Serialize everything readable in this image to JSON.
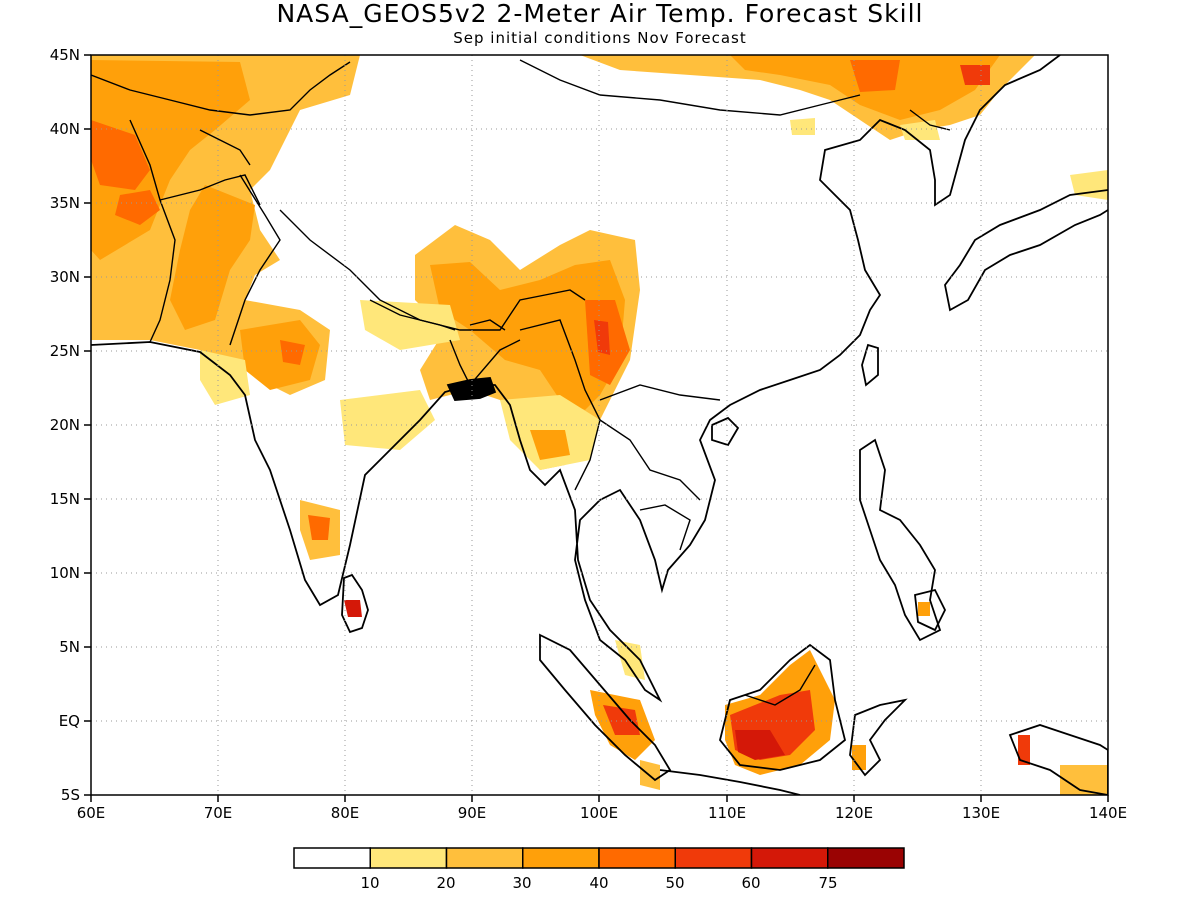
{
  "title": "NASA_GEOS5v2 2-Meter Air Temp. Forecast Skill",
  "subtitle": "Sep initial conditions  Nov Forecast",
  "map": {
    "lon_range": [
      60,
      140
    ],
    "lat_range": [
      -5,
      45
    ],
    "lat_labels": [
      "45N",
      "40N",
      "35N",
      "30N",
      "25N",
      "20N",
      "15N",
      "10N",
      "5N",
      "EQ",
      "5S"
    ],
    "lon_labels": [
      "60E",
      "70E",
      "80E",
      "90E",
      "100E",
      "110E",
      "120E",
      "130E",
      "140E"
    ],
    "grid": "dotted"
  },
  "colorbar": {
    "labels": [
      "10",
      "20",
      "30",
      "40",
      "50",
      "60",
      "75"
    ],
    "colors": [
      "#ffffff",
      "#ffe77a",
      "#ffbf3c",
      "#ffa00a",
      "#ff6a00",
      "#f03a0a",
      "#d41808",
      "#9a0303"
    ]
  }
}
